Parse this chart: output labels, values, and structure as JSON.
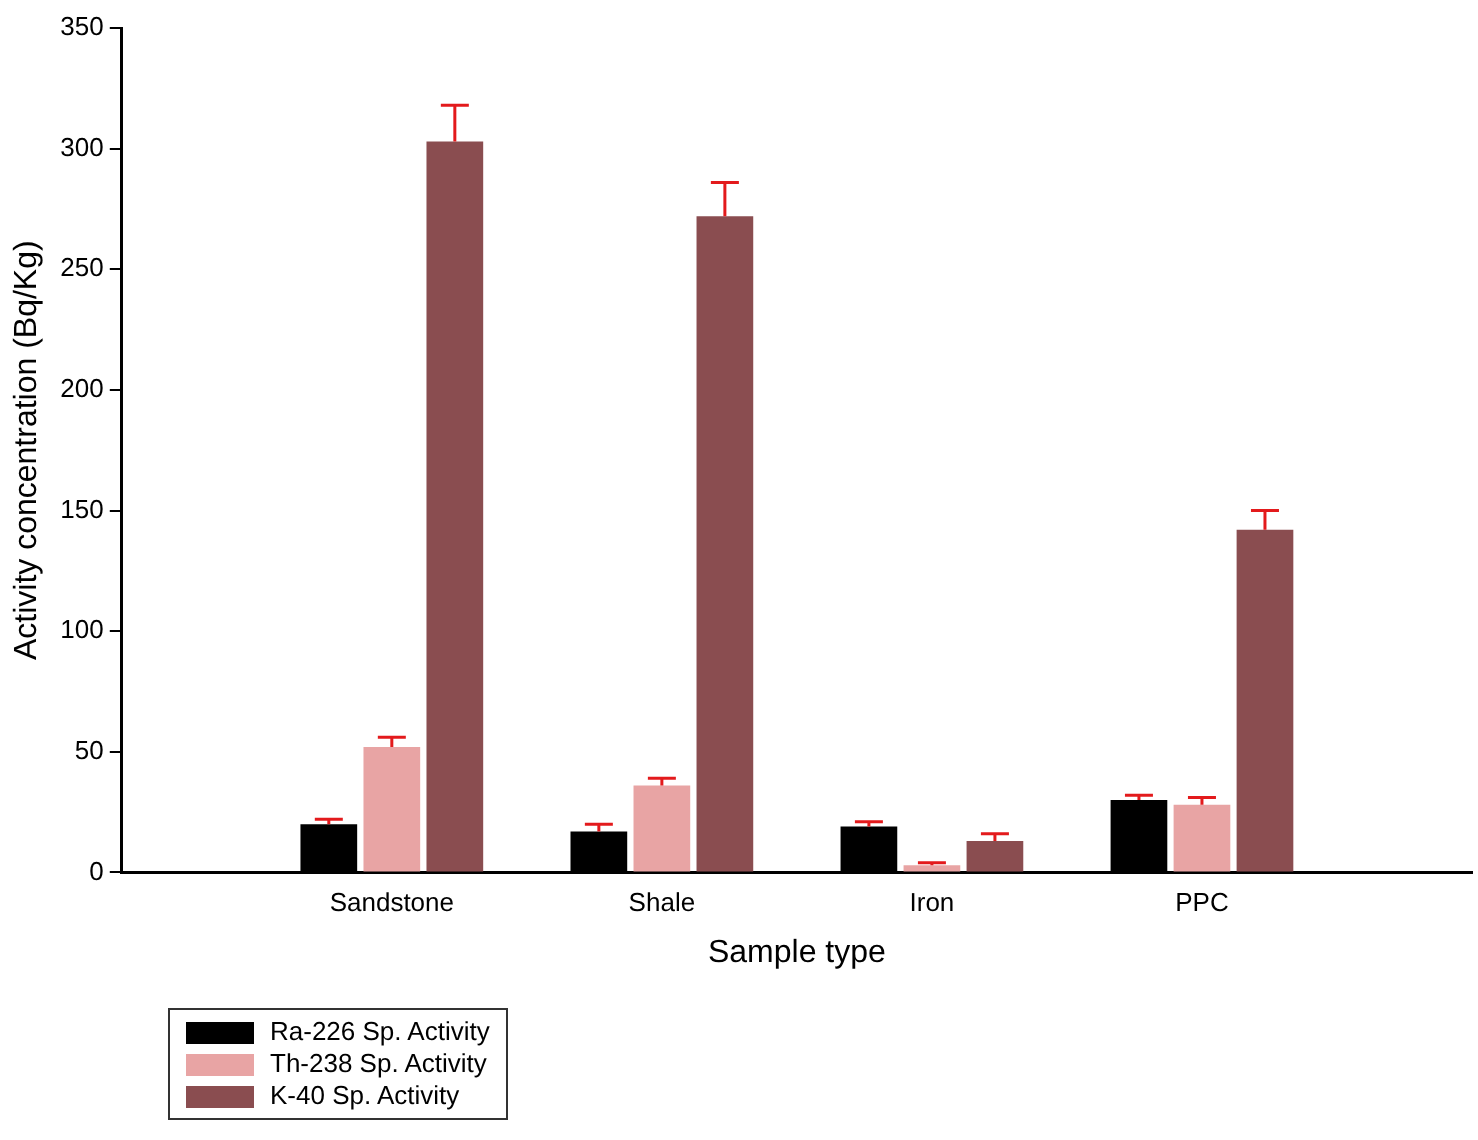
{
  "chart_data": {
    "type": "bar",
    "xlabel": "Sample type",
    "ylabel": "Activity concentration (Bq/Kg)",
    "categories": [
      null,
      "Sandstone",
      "Shale",
      "Iron",
      "PPC",
      null
    ],
    "series": [
      {
        "name": "Ra-226 Sp. Activity",
        "color": "#000000",
        "values": [
          null,
          20,
          17,
          19,
          30,
          null
        ],
        "errors": [
          null,
          [
            20,
            22
          ],
          [
            17,
            20
          ],
          [
            19,
            21
          ],
          [
            30,
            32
          ],
          null
        ]
      },
      {
        "name": "Th-238 Sp. Activity",
        "color": "#e8a4a4",
        "values": [
          null,
          52,
          36,
          3,
          28,
          null
        ],
        "errors": [
          null,
          [
            52,
            56
          ],
          [
            36,
            39
          ],
          [
            3,
            4
          ],
          [
            28,
            31
          ],
          null
        ]
      },
      {
        "name": "K-40 Sp. Activity",
        "color": "#8a4d50",
        "values": [
          null,
          303,
          272,
          13,
          142,
          null
        ],
        "errors": [
          null,
          [
            303,
            318
          ],
          [
            272,
            286
          ],
          [
            13,
            16
          ],
          [
            142,
            150
          ],
          null
        ]
      }
    ],
    "ylim": [
      0,
      350
    ],
    "yticks": [
      0,
      50,
      100,
      150,
      200,
      250,
      300,
      350
    ],
    "grid": false,
    "legend": "bottom left"
  }
}
